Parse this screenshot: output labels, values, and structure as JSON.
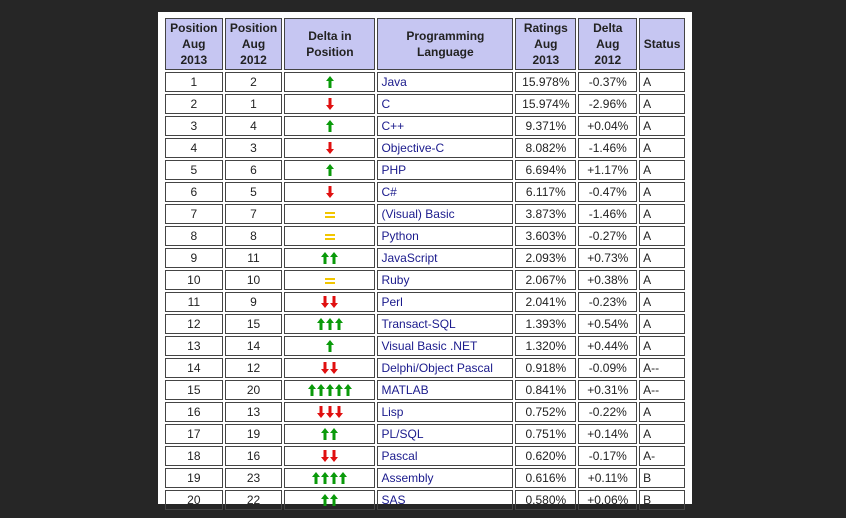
{
  "headers": {
    "pos2013": [
      "Position",
      "Aug 2013"
    ],
    "pos2012": [
      "Position",
      "Aug 2012"
    ],
    "delta_pos": "Delta in Position",
    "language": "Programming Language",
    "ratings": [
      "Ratings",
      "Aug 2013"
    ],
    "delta": [
      "Delta",
      "Aug 2012"
    ],
    "status": "Status"
  },
  "colors": {
    "up": "#0a9a0a",
    "down": "#e01010",
    "same": "#f2c600",
    "header": "#c6c6f2",
    "link": "#1a1a8c"
  },
  "rows": [
    {
      "pos2013": "1",
      "pos2012": "2",
      "move": "up",
      "count": 1,
      "language": "Java",
      "rating": "15.978%",
      "delta": "-0.37%",
      "status": "A"
    },
    {
      "pos2013": "2",
      "pos2012": "1",
      "move": "down",
      "count": 1,
      "language": "C",
      "rating": "15.974%",
      "delta": "-2.96%",
      "status": "A"
    },
    {
      "pos2013": "3",
      "pos2012": "4",
      "move": "up",
      "count": 1,
      "language": "C++",
      "rating": "9.371%",
      "delta": "+0.04%",
      "status": "A"
    },
    {
      "pos2013": "4",
      "pos2012": "3",
      "move": "down",
      "count": 1,
      "language": "Objective-C",
      "rating": "8.082%",
      "delta": "-1.46%",
      "status": "A"
    },
    {
      "pos2013": "5",
      "pos2012": "6",
      "move": "up",
      "count": 1,
      "language": "PHP",
      "rating": "6.694%",
      "delta": "+1.17%",
      "status": "A"
    },
    {
      "pos2013": "6",
      "pos2012": "5",
      "move": "down",
      "count": 1,
      "language": "C#",
      "rating": "6.117%",
      "delta": "-0.47%",
      "status": "A"
    },
    {
      "pos2013": "7",
      "pos2012": "7",
      "move": "same",
      "count": 1,
      "language": "(Visual) Basic",
      "rating": "3.873%",
      "delta": "-1.46%",
      "status": "A"
    },
    {
      "pos2013": "8",
      "pos2012": "8",
      "move": "same",
      "count": 1,
      "language": "Python",
      "rating": "3.603%",
      "delta": "-0.27%",
      "status": "A"
    },
    {
      "pos2013": "9",
      "pos2012": "11",
      "move": "up",
      "count": 2,
      "language": "JavaScript",
      "rating": "2.093%",
      "delta": "+0.73%",
      "status": "A"
    },
    {
      "pos2013": "10",
      "pos2012": "10",
      "move": "same",
      "count": 1,
      "language": "Ruby",
      "rating": "2.067%",
      "delta": "+0.38%",
      "status": "A"
    },
    {
      "pos2013": "11",
      "pos2012": "9",
      "move": "down",
      "count": 2,
      "language": "Perl",
      "rating": "2.041%",
      "delta": "-0.23%",
      "status": "A"
    },
    {
      "pos2013": "12",
      "pos2012": "15",
      "move": "up",
      "count": 3,
      "language": "Transact-SQL",
      "rating": "1.393%",
      "delta": "+0.54%",
      "status": "A"
    },
    {
      "pos2013": "13",
      "pos2012": "14",
      "move": "up",
      "count": 1,
      "language": "Visual Basic .NET",
      "rating": "1.320%",
      "delta": "+0.44%",
      "status": "A"
    },
    {
      "pos2013": "14",
      "pos2012": "12",
      "move": "down",
      "count": 2,
      "language": "Delphi/Object Pascal",
      "rating": "0.918%",
      "delta": "-0.09%",
      "status": "A--"
    },
    {
      "pos2013": "15",
      "pos2012": "20",
      "move": "up",
      "count": 5,
      "language": "MATLAB",
      "rating": "0.841%",
      "delta": "+0.31%",
      "status": "A--"
    },
    {
      "pos2013": "16",
      "pos2012": "13",
      "move": "down",
      "count": 3,
      "language": "Lisp",
      "rating": "0.752%",
      "delta": "-0.22%",
      "status": "A"
    },
    {
      "pos2013": "17",
      "pos2012": "19",
      "move": "up",
      "count": 2,
      "language": "PL/SQL",
      "rating": "0.751%",
      "delta": "+0.14%",
      "status": "A"
    },
    {
      "pos2013": "18",
      "pos2012": "16",
      "move": "down",
      "count": 2,
      "language": "Pascal",
      "rating": "0.620%",
      "delta": "-0.17%",
      "status": "A-"
    },
    {
      "pos2013": "19",
      "pos2012": "23",
      "move": "up",
      "count": 4,
      "language": "Assembly",
      "rating": "0.616%",
      "delta": "+0.11%",
      "status": "B"
    },
    {
      "pos2013": "20",
      "pos2012": "22",
      "move": "up",
      "count": 2,
      "language": "SAS",
      "rating": "0.580%",
      "delta": "+0.06%",
      "status": "B"
    }
  ]
}
